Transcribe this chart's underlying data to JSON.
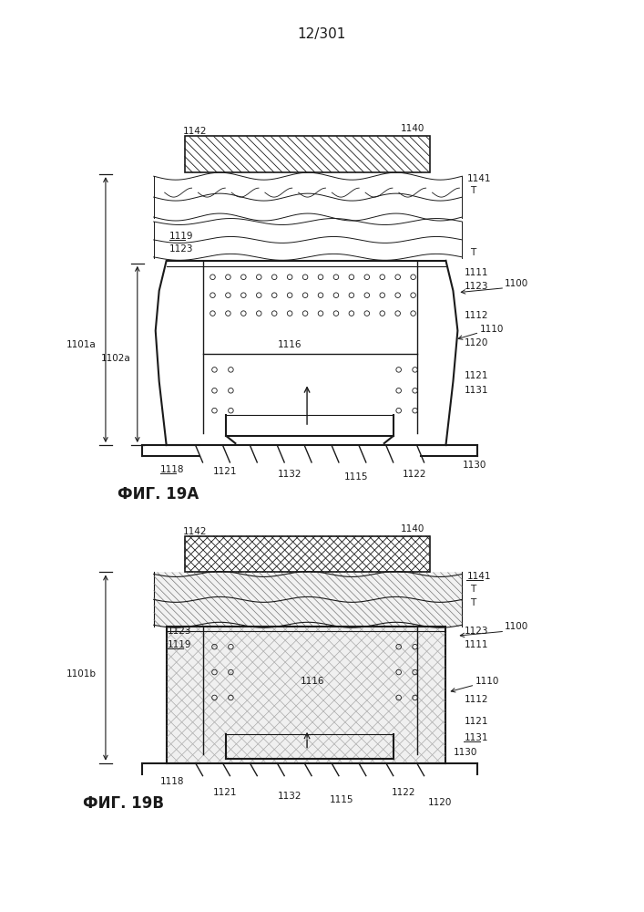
{
  "page_label": "12/301",
  "fig_a_label": "ФИГ. 19А",
  "fig_b_label": "ФИГ. 19B",
  "bg_color": "#ffffff",
  "line_color": "#1a1a1a"
}
